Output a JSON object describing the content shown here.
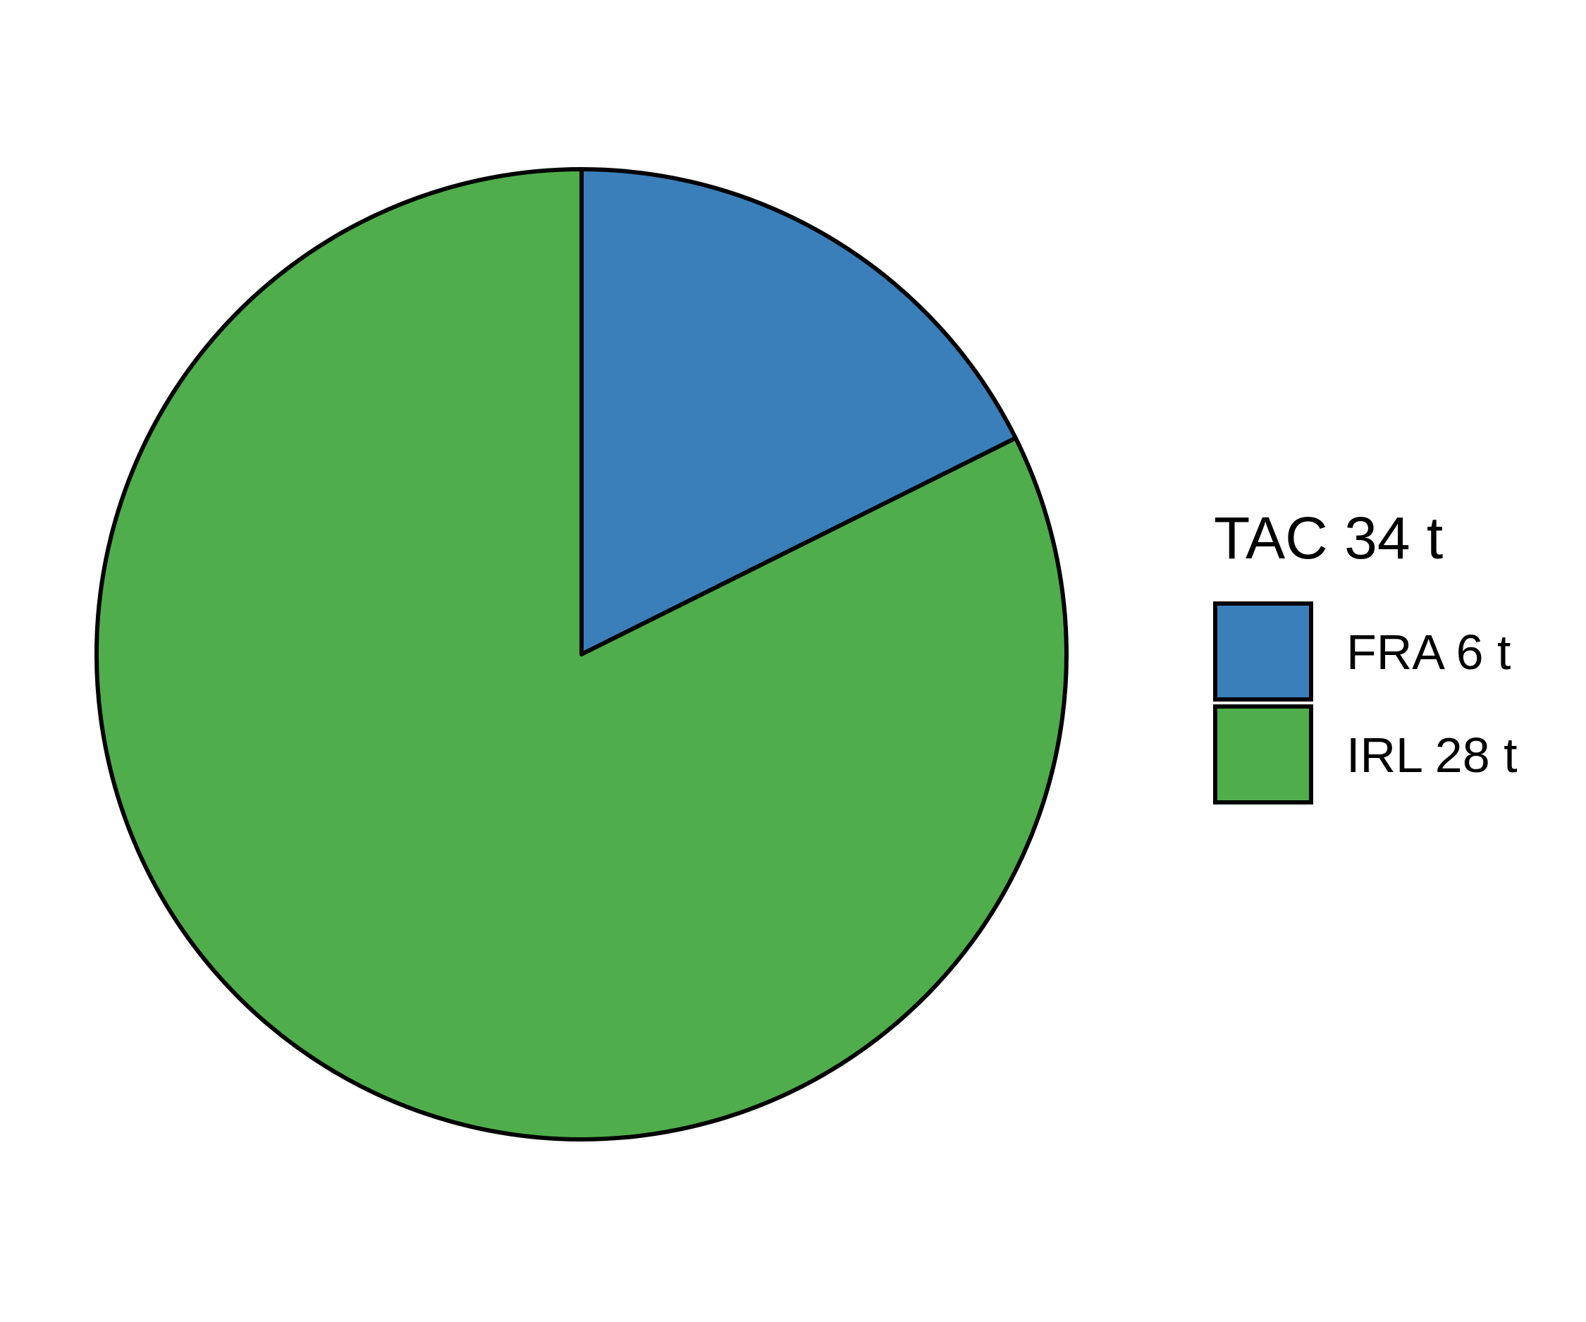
{
  "chart_data": {
    "type": "pie",
    "legend_title": "TAC 34 t",
    "legend_position": "right",
    "start_angle": "12 o'clock",
    "direction": "clockwise",
    "slices": [
      {
        "label": "FRA 6 t",
        "value": 6,
        "color": "#3a7fba"
      },
      {
        "label": "IRL 28 t",
        "value": 28,
        "color": "#4fae4b"
      }
    ]
  }
}
